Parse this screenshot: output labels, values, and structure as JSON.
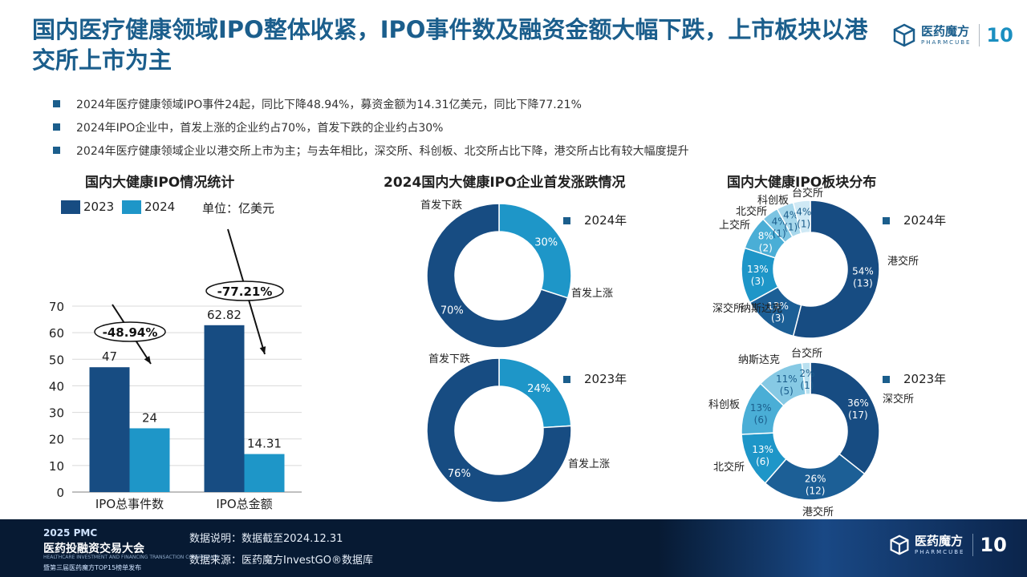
{
  "header": {
    "title": "国内医疗健康领域IPO整体收紧，IPO事件数及融资金额大幅下跌，上市板块以港交所上市为主",
    "logo_cn": "医药魔方",
    "logo_en": "PHARMCUBE",
    "logo_badge": "10"
  },
  "bullets": [
    "2024年医疗健康领域IPO事件24起，同比下降48.94%，募资金额为14.31亿美元，同比下降77.21%",
    "2024年IPO企业中，首发上涨的企业约占70%，首发下跌的企业约占30%",
    "2024年医疗健康领域企业以港交所上市为主；与去年相比，深交所、科创板、北交所占比下降，港交所占比有较大幅度提升"
  ],
  "colors": {
    "c2023": "#174c82",
    "c2024": "#1e96c8",
    "title": "#1b5e8c"
  },
  "chart_data": [
    {
      "type": "bar",
      "title": "国内大健康IPO情况统计",
      "unit": "单位：亿美元",
      "categories": [
        "IPO总事件数",
        "IPO总金额"
      ],
      "series": [
        {
          "name": "2023",
          "values": [
            47,
            62.82
          ]
        },
        {
          "name": "2024",
          "values": [
            24,
            14.31
          ]
        }
      ],
      "value_labels": [
        [
          "47",
          "62.82"
        ],
        [
          "24",
          "14.31"
        ]
      ],
      "ylim": [
        0,
        70
      ],
      "yticks": [
        "0",
        "10",
        "20",
        "30",
        "40",
        "50",
        "60",
        "70"
      ],
      "annotations": [
        "-48.94%",
        "-77.21%"
      ],
      "grid": true
    },
    {
      "type": "pie",
      "title": "2024国内大健康IPO企业首发涨跌情况",
      "charts": [
        {
          "name": "2024年",
          "slices": [
            {
              "label": "首发下跌",
              "value": 30,
              "text": "30%",
              "color": "#1e96c8"
            },
            {
              "label": "首发上涨",
              "value": 70,
              "text": "70%",
              "color": "#174c82"
            }
          ]
        },
        {
          "name": "2023年",
          "slices": [
            {
              "label": "首发下跌",
              "value": 24,
              "text": "24%",
              "color": "#1e96c8"
            },
            {
              "label": "首发上涨",
              "value": 76,
              "text": "76%",
              "color": "#174c82"
            }
          ]
        }
      ]
    },
    {
      "type": "pie",
      "title": "国内大健康IPO板块分布",
      "charts": [
        {
          "name": "2024年",
          "slices": [
            {
              "label": "港交所",
              "value": 54,
              "text": "54%",
              "count": "(13)",
              "color": "#174c82"
            },
            {
              "label": "纳斯达克",
              "value": 13,
              "text": "13%",
              "count": "(3)",
              "color": "#1c5f96"
            },
            {
              "label": "深交所",
              "value": 13,
              "text": "13%",
              "count": "(3)",
              "color": "#1e96c8"
            },
            {
              "label": "上交所",
              "value": 8,
              "text": "8%",
              "count": "(2)",
              "color": "#4aaed6"
            },
            {
              "label": "北交所",
              "value": 4,
              "text": "4%",
              "count": "(1)",
              "color": "#7cc4e2"
            },
            {
              "label": "科创板",
              "value": 4,
              "text": "4%",
              "count": "(1)",
              "color": "#a8d8ec"
            },
            {
              "label": "台交所",
              "value": 4,
              "text": "4%",
              "count": "(1)",
              "color": "#cfe9f5"
            }
          ]
        },
        {
          "name": "2023年",
          "slices": [
            {
              "label": "深交所",
              "value": 36,
              "text": "36%",
              "count": "(17)",
              "color": "#174c82"
            },
            {
              "label": "港交所",
              "value": 26,
              "text": "26%",
              "count": "(12)",
              "color": "#1c5f96"
            },
            {
              "label": "北交所",
              "value": 13,
              "text": "13%",
              "count": "(6)",
              "color": "#1e96c8"
            },
            {
              "label": "科创板",
              "value": 13,
              "text": "13%",
              "count": "(6)",
              "color": "#4aaed6"
            },
            {
              "label": "纳斯达克",
              "value": 11,
              "text": "11%",
              "count": "(5)",
              "color": "#86c9e4"
            },
            {
              "label": "台交所",
              "value": 2,
              "text": "2%",
              "count": "(1)",
              "color": "#b9e0f0"
            }
          ]
        }
      ]
    }
  ],
  "footer": {
    "event_line1": "2025 PMC",
    "event_line2": "医药投融资交易大会",
    "event_line3": "HEALTHCARE INVESTMENT AND FINANCING TRANSACTION CONFERENCE",
    "event_line4": "暨第三届医药魔方TOP15榜单发布",
    "note1": "数据说明：数据截至2024.12.31",
    "note2": "数据来源：医药魔方InvestGO®数据库"
  }
}
